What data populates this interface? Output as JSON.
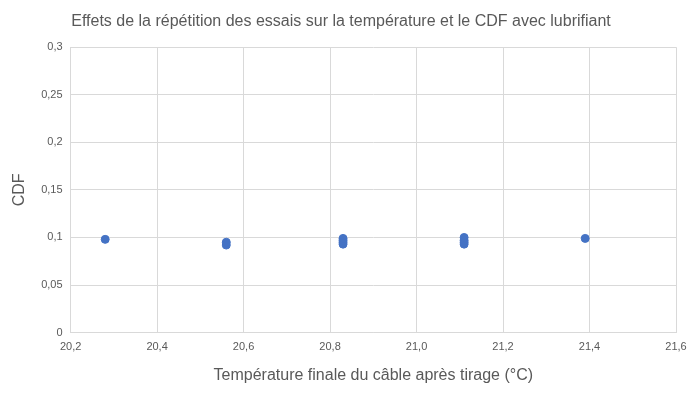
{
  "chart_data": {
    "type": "scatter",
    "title": "Effets de la répétition des essais sur la température et le CDF avec lubrifiant",
    "x_label": "Température finale du câble après tirage (°C)",
    "y_label": "CDF",
    "x": [
      20.28,
      20.56,
      20.56,
      20.83,
      20.83,
      20.83,
      20.83,
      21.11,
      21.11,
      21.11,
      21.11,
      21.39
    ],
    "values": [
      0.098,
      0.092,
      0.095,
      0.093,
      0.095,
      0.097,
      0.099,
      0.093,
      0.095,
      0.097,
      0.1,
      0.099
    ],
    "color": "#4472c4",
    "marker": "circle",
    "xlim": [
      20.2,
      21.6
    ],
    "xticks": [
      {
        "value": 20.2,
        "label": "20,2"
      },
      {
        "value": 20.4,
        "label": "20,4"
      },
      {
        "value": 20.6,
        "label": "20,6"
      },
      {
        "value": 20.8,
        "label": "20,8"
      },
      {
        "value": 21.0,
        "label": "21,0"
      },
      {
        "value": 21.2,
        "label": "21,2"
      },
      {
        "value": 21.4,
        "label": "21,4"
      },
      {
        "value": 21.6,
        "label": "21,6"
      }
    ],
    "ylim": [
      0,
      0.3
    ],
    "yticks": [
      0,
      {
        "value": 0.05,
        "label": "0,05"
      },
      {
        "value": 0.1,
        "label": "0,1"
      },
      {
        "value": 0.15,
        "label": "0,15"
      },
      {
        "value": 0.2,
        "label": "0,2"
      },
      {
        "value": 0.25,
        "label": "0,25"
      },
      {
        "value": 0.3,
        "label": "0,3"
      }
    ],
    "grid": true
  }
}
